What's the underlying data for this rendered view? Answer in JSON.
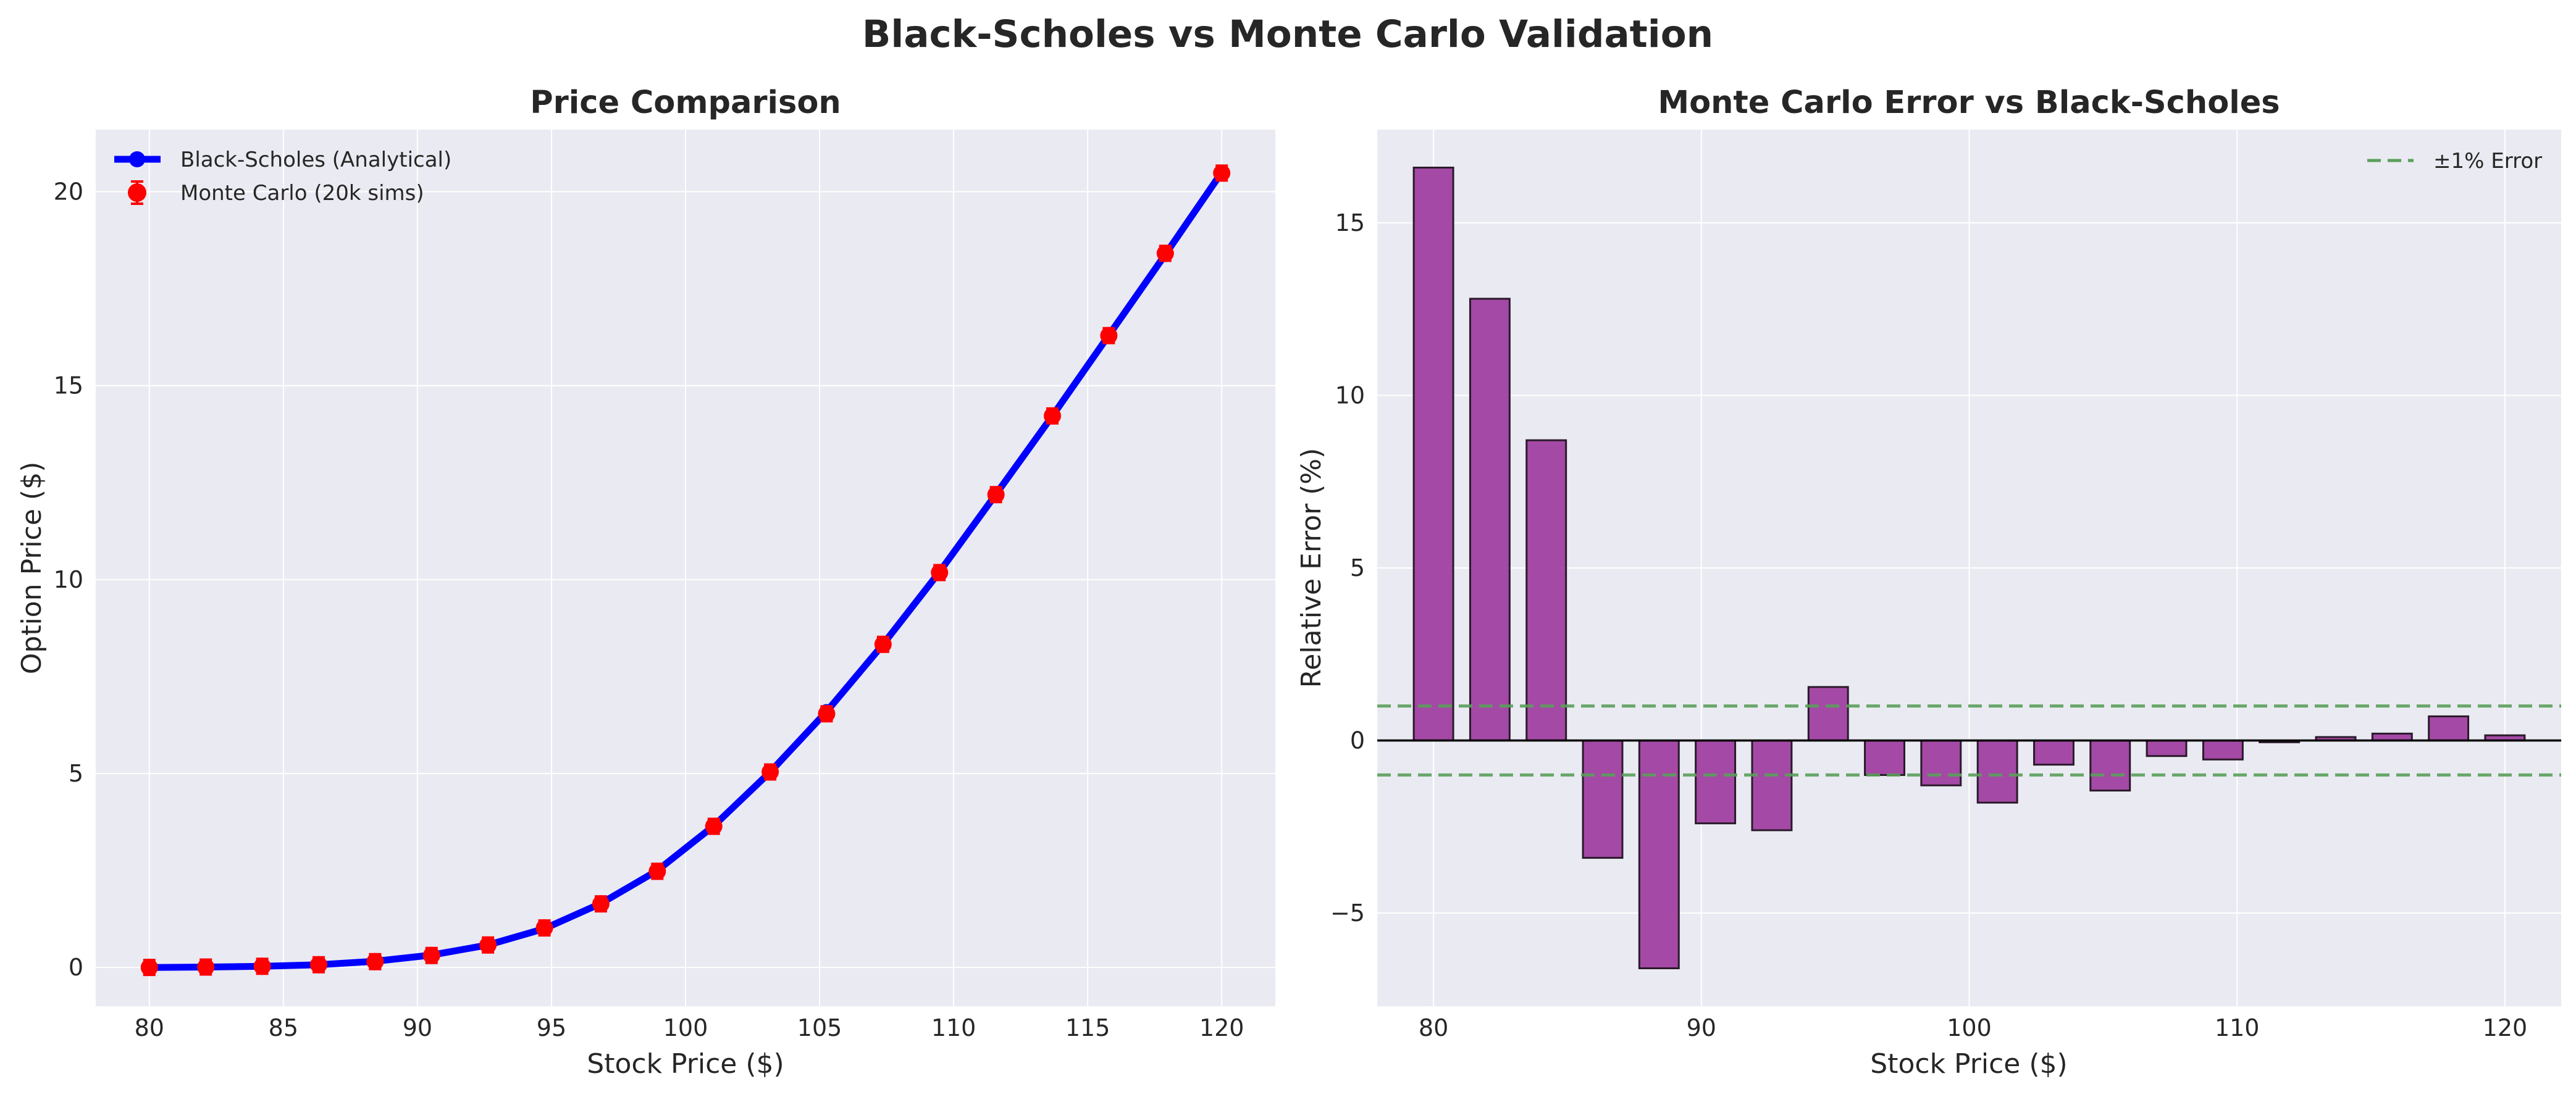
{
  "figure": {
    "title": "Black-Scholes vs Monte Carlo Validation"
  },
  "chart_data": [
    {
      "type": "line",
      "title": "Price Comparison",
      "xlabel": "Stock Price ($)",
      "ylabel": "Option Price ($)",
      "xlim": [
        78,
        122
      ],
      "ylim": [
        -1.0,
        21.6
      ],
      "xticks": [
        80,
        85,
        90,
        95,
        100,
        105,
        110,
        115,
        120
      ],
      "yticks": [
        0,
        5,
        10,
        15,
        20
      ],
      "grid": true,
      "legend_position": "top-left",
      "x": [
        80.0,
        82.105,
        84.211,
        86.316,
        88.421,
        90.526,
        92.632,
        94.737,
        96.842,
        98.947,
        101.053,
        103.158,
        105.263,
        107.368,
        109.474,
        111.579,
        113.684,
        115.789,
        117.895,
        120.0
      ],
      "series": [
        {
          "name": "Black-Scholes (Analytical)",
          "style": "line-marker",
          "color": "#0000ff",
          "values": [
            0.0,
            0.01,
            0.03,
            0.07,
            0.16,
            0.32,
            0.58,
            1.0,
            1.65,
            2.5,
            3.65,
            5.04,
            6.6,
            8.33,
            10.2,
            12.2,
            14.22,
            16.3,
            18.38,
            20.5
          ]
        },
        {
          "name": "Monte Carlo (20k sims)",
          "style": "marker-errorbar",
          "color": "#ff0000",
          "values": [
            0.0,
            0.01,
            0.03,
            0.07,
            0.15,
            0.31,
            0.58,
            1.02,
            1.64,
            2.48,
            3.64,
            5.04,
            6.54,
            8.33,
            10.18,
            12.19,
            14.22,
            16.29,
            18.41,
            20.48
          ]
        }
      ]
    },
    {
      "type": "bar",
      "title": "Monte Carlo Error vs Black-Scholes",
      "xlabel": "Stock Price ($)",
      "ylabel": "Relative Error (%)",
      "xlim": [
        77.9,
        122.1
      ],
      "ylim": [
        -7.7,
        17.7
      ],
      "xticks": [
        80,
        90,
        100,
        110,
        120
      ],
      "yticks": [
        -5,
        0,
        5,
        10,
        15
      ],
      "grid": true,
      "legend_position": "top-right",
      "bar_color": "#a040a0",
      "x": [
        80.0,
        82.105,
        84.211,
        86.316,
        88.421,
        90.526,
        92.632,
        94.737,
        96.842,
        98.947,
        101.053,
        103.158,
        105.263,
        107.368,
        109.474,
        111.579,
        113.684,
        115.789,
        117.895,
        120.0
      ],
      "values": [
        16.6,
        12.8,
        8.7,
        -3.4,
        -6.6,
        -2.4,
        -2.6,
        1.55,
        -1.0,
        -1.3,
        -1.8,
        -0.7,
        -1.45,
        -0.45,
        -0.55,
        -0.05,
        0.1,
        0.2,
        0.7,
        0.15
      ],
      "reference_lines": [
        {
          "name": "±1% Error",
          "values": [
            1,
            -1
          ],
          "color": "#5aa05a",
          "style": "dashed"
        }
      ]
    }
  ]
}
